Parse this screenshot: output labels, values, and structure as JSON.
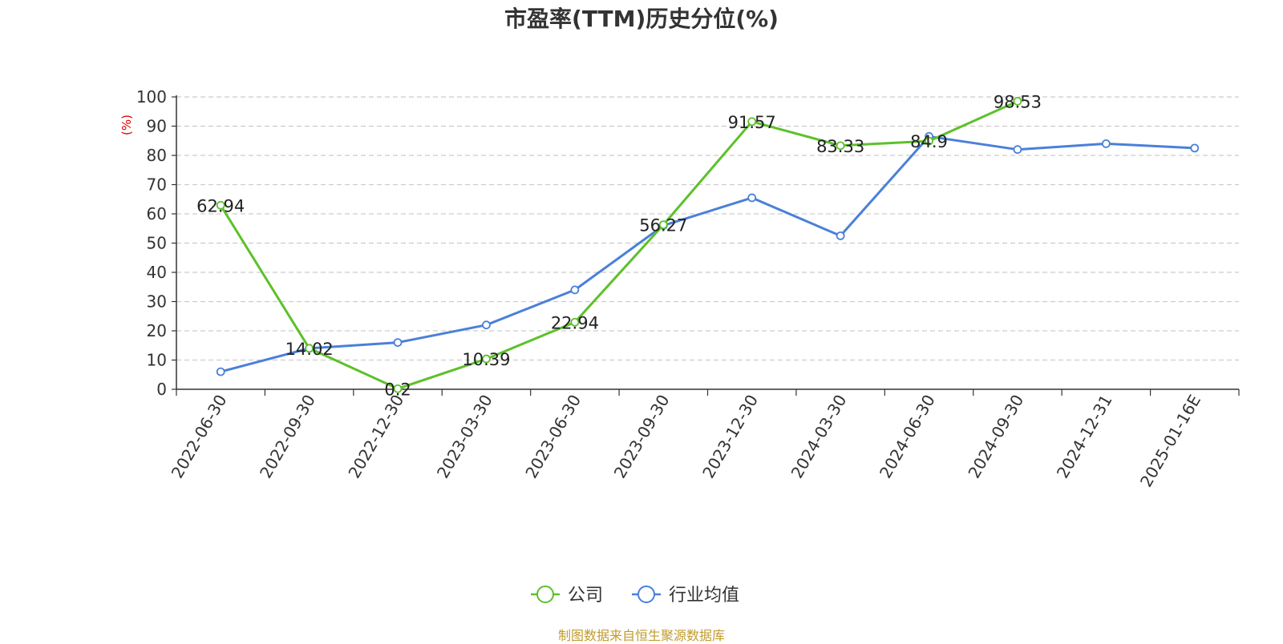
{
  "title": "市盈率(TTM)历史分位(%)",
  "source": "制图数据来自恒生聚源数据库",
  "chart_data": {
    "type": "line",
    "title": "市盈率(TTM)历史分位(%)",
    "ylabel": "(%)",
    "xlabel": "",
    "ylim": [
      0,
      100
    ],
    "yticks": [
      0,
      10,
      20,
      30,
      40,
      50,
      60,
      70,
      80,
      90,
      100
    ],
    "grid": true,
    "legend_position": "bottom",
    "categories": [
      "2022-06-30",
      "2022-09-30",
      "2022-12-30",
      "2023-03-30",
      "2023-06-30",
      "2023-09-30",
      "2023-12-30",
      "2024-03-30",
      "2024-06-30",
      "2024-09-30",
      "2024-12-31",
      "2025-01-16E"
    ],
    "series": [
      {
        "name": "公司",
        "color": "#5cc12a",
        "values": [
          62.94,
          14.02,
          0.2,
          10.39,
          22.94,
          56.27,
          91.57,
          83.33,
          84.9,
          98.53,
          null,
          null
        ],
        "labels": [
          "62.94",
          "14.02",
          "0.2",
          "10.39",
          "22.94",
          "56.27",
          "91.57",
          "83.33",
          "84.9",
          "98.53",
          "",
          ""
        ]
      },
      {
        "name": "行业均值",
        "color": "#4a80d9",
        "values": [
          6,
          14,
          16,
          22,
          34,
          56,
          65.5,
          52.5,
          86.5,
          82,
          84,
          82.5
        ]
      }
    ]
  }
}
